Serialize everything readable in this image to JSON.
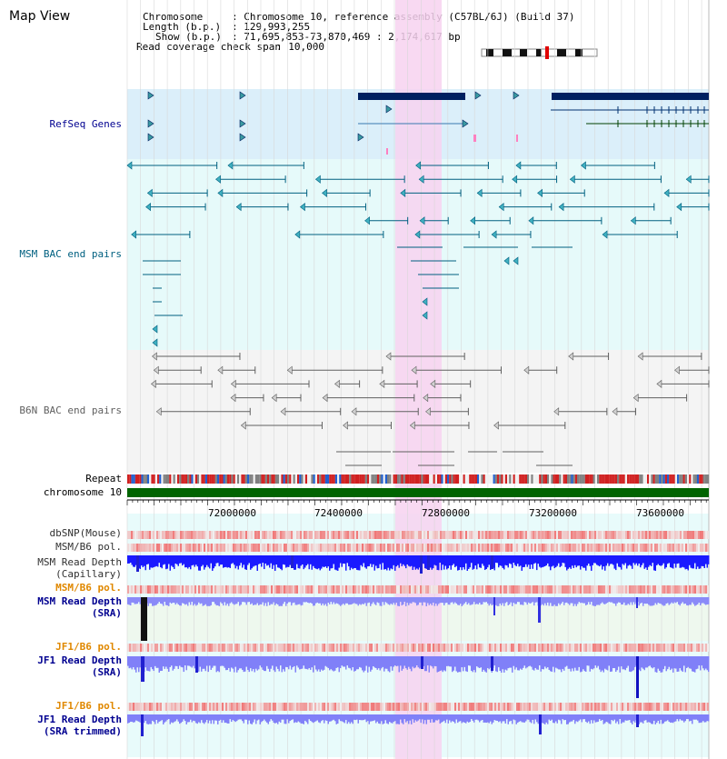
{
  "title": "Map View",
  "header": {
    "chromosome_label": "Chromosome",
    "chromosome_value": ": Chromosome 10, reference assembly (C57BL/6J) (Build 37)",
    "length_label": "Length (b.p.)",
    "length_value": ": 129,993,255",
    "show_label": "Show (b.p.)",
    "show_value": ": 71,695,853-73,870,469 : 2,174,617 bp",
    "coverage_label": "Read coverage check span",
    "coverage_value": ": 10,000"
  },
  "tracks": {
    "refseq": "RefSeq Genes",
    "msm_bac": "MSM BAC end pairs",
    "b6n_bac": "B6N BAC end pairs",
    "repeat": "Repeat",
    "chromosome": "chromosome 10",
    "dbsnp": "dbSNP(Mouse)",
    "msm_pol1": "MSM/B6 pol.",
    "msm_depth_cap_1": "MSM Read Depth",
    "msm_depth_cap_2": "(Capillary)",
    "msm_pol2": "MSM/B6 pol.",
    "msm_depth_sra_1": "MSM Read Depth",
    "msm_depth_sra_2": "(SRA)",
    "jf1_pol1": "JF1/B6 pol.",
    "jf1_depth_sra_1": "JF1 Read Depth",
    "jf1_depth_sra_2": "(SRA)",
    "jf1_pol2": "JF1/B6 pol.",
    "jf1_depth_trim_1": "JF1 Read Depth",
    "jf1_depth_trim_2": "(SRA trimmed)"
  },
  "ruler": {
    "ticks": [
      "72000000",
      "72400000",
      "72800000",
      "73200000",
      "73600000"
    ]
  },
  "colors": {
    "refseq_bg": "#dbeffa",
    "msm_bg": "#e6fafa",
    "b6n_bg": "#f4f4f4",
    "highlight": "#f7d2f0",
    "gene": "#002060",
    "msm_bac": "#006080",
    "b6n_bac": "#606060",
    "chromosome": "#006400",
    "label_blue": "#000090",
    "label_teal": "#006080",
    "label_gray": "#606060",
    "label_orange": "#e08800",
    "label_black": "#202020"
  }
}
